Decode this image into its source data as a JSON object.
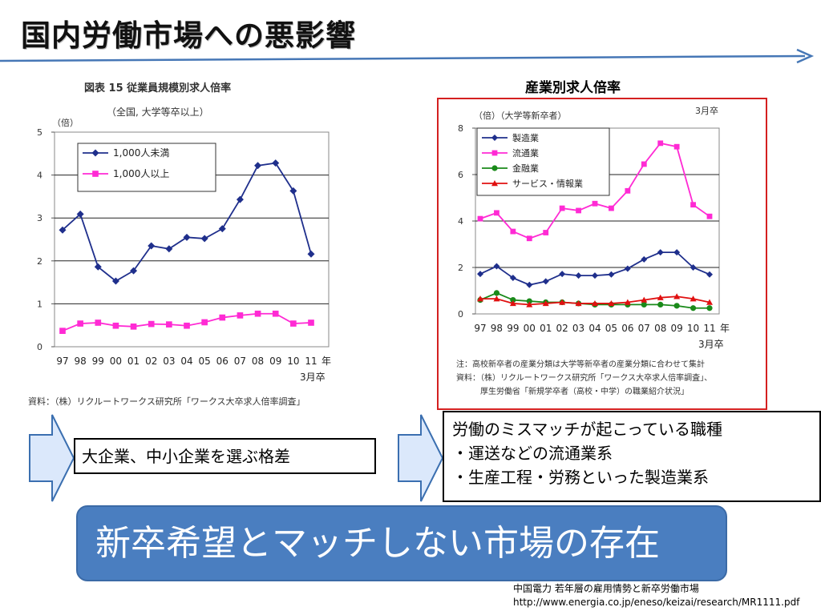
{
  "slide": {
    "title": "国内労働市場への悪影響",
    "right_chart_heading": "産業別求人倍率",
    "annotation_left": "大企業、中小企業を選ぶ格差",
    "annotation_right": [
      "労働のミスマッチが起こっている職種",
      "・運送などの流通業系",
      "・生産工程・労務といった製造業系"
    ],
    "banner": "新卒希望とマッチしない市場の存在",
    "source_lines": [
      "中国電力 若年層の雇用情勢と新卒労働市場",
      "http://www.energia.co.jp/eneso/keizai/research/MR1111.pdf"
    ]
  },
  "chart_data": [
    {
      "type": "line",
      "title": "図表 15 従業員規模別求人倍率",
      "subtitle": "（全国, 大学等卒以上）",
      "ylabel": "（倍）",
      "x_suffix": "年",
      "x_footer": "3月卒",
      "categories": [
        "97",
        "98",
        "99",
        "00",
        "01",
        "02",
        "03",
        "04",
        "05",
        "06",
        "07",
        "08",
        "09",
        "10",
        "11"
      ],
      "ylim": [
        0,
        5
      ],
      "yticks": [
        0,
        1,
        2,
        3,
        4,
        5
      ],
      "grid": "horizontal at 2, 3, 4",
      "legend_position": "top-left",
      "series": [
        {
          "name": "1,000人未満",
          "color": "#1f2f8c",
          "marker": "diamond",
          "values": [
            2.72,
            3.09,
            1.86,
            1.53,
            1.77,
            2.35,
            2.28,
            2.55,
            2.52,
            2.75,
            3.43,
            4.22,
            4.28,
            3.63,
            2.16
          ]
        },
        {
          "name": "1,000人以上",
          "color": "#ff2ad4",
          "marker": "square",
          "values": [
            0.37,
            0.54,
            0.56,
            0.49,
            0.47,
            0.53,
            0.52,
            0.49,
            0.57,
            0.68,
            0.73,
            0.77,
            0.77,
            0.54,
            0.56
          ]
        }
      ],
      "source_note": "資料：（株）リクルートワークス研究所「ワークス大卒求人倍率調査」"
    },
    {
      "type": "line",
      "title": "",
      "ylabel": "（倍）（大学等新卒者）",
      "corner_label": "3月卒",
      "x_suffix": "年",
      "x_footer": "3月卒",
      "categories": [
        "97",
        "98",
        "99",
        "00",
        "01",
        "02",
        "03",
        "04",
        "05",
        "06",
        "07",
        "08",
        "09",
        "10",
        "11"
      ],
      "ylim": [
        0,
        8
      ],
      "yticks": [
        0,
        2,
        4,
        6,
        8
      ],
      "grid": "horizontal at 2, 4, 6",
      "legend_position": "top-left",
      "series": [
        {
          "name": "製造業",
          "color": "#1f2f8c",
          "marker": "diamond",
          "values": [
            1.72,
            2.05,
            1.55,
            1.25,
            1.4,
            1.72,
            1.65,
            1.65,
            1.7,
            1.95,
            2.35,
            2.65,
            2.65,
            2.0,
            1.7
          ]
        },
        {
          "name": "流通業",
          "color": "#ff2ad4",
          "marker": "square",
          "values": [
            4.1,
            4.35,
            3.55,
            3.25,
            3.5,
            4.55,
            4.45,
            4.75,
            4.55,
            5.3,
            6.45,
            7.35,
            7.2,
            4.7,
            4.2
          ]
        },
        {
          "name": "金融業",
          "color": "#1a8a1a",
          "marker": "circle",
          "values": [
            0.6,
            0.9,
            0.6,
            0.55,
            0.5,
            0.5,
            0.45,
            0.4,
            0.4,
            0.4,
            0.4,
            0.4,
            0.35,
            0.25,
            0.25
          ]
        },
        {
          "name": "サービス・情報業",
          "color": "#e01010",
          "marker": "triangle",
          "values": [
            0.65,
            0.65,
            0.45,
            0.4,
            0.45,
            0.5,
            0.45,
            0.45,
            0.45,
            0.5,
            0.6,
            0.7,
            0.75,
            0.65,
            0.5
          ]
        }
      ],
      "notes": [
        "注：高校新卒者の産業分類は大学等新卒者の産業分類に合わせて集計",
        "資料：（株）リクルートワークス研究所「ワークス大卒求人倍率調査」、",
        "厚生労働省「新規学卒者（高校・中学）の職業紹介状況」"
      ]
    }
  ],
  "colors": {
    "banner_bg": "#4a7ec0",
    "frame_red": "#d42020",
    "arrow_fill": "#dbe8fb",
    "arrow_stroke": "#3b6fb0",
    "title_arrow": "#4677b6"
  }
}
